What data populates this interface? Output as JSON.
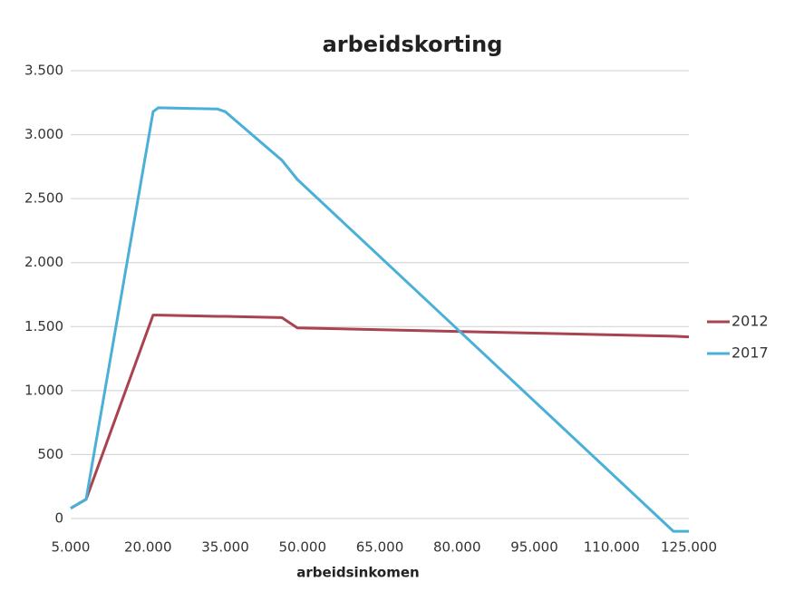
{
  "chart_data": {
    "type": "line",
    "title": "arbeidskorting",
    "x_label": "arbeidsinkomen",
    "x": [
      5000,
      8000,
      21000,
      22000,
      33500,
      35000,
      46000,
      49000,
      122000,
      125000
    ],
    "series": [
      {
        "name": "2012",
        "color": "#a8434f",
        "values": [
          80,
          150,
          1590,
          1590,
          1580,
          1580,
          1570,
          1490,
          1425,
          1420
        ]
      },
      {
        "name": "2017",
        "color": "#4ab0d8",
        "values": [
          80,
          150,
          3180,
          3210,
          3200,
          3180,
          2800,
          2650,
          -100,
          -100
        ]
      }
    ],
    "xlim": [
      5000,
      125000
    ],
    "xticks": [
      {
        "value": 5000,
        "label": "5.000"
      },
      {
        "value": 20000,
        "label": "20.000"
      },
      {
        "value": 35000,
        "label": "35.000"
      },
      {
        "value": 50000,
        "label": "50.000"
      },
      {
        "value": 65000,
        "label": "65.000"
      },
      {
        "value": 80000,
        "label": "80.000"
      },
      {
        "value": 95000,
        "label": "95.000"
      },
      {
        "value": 110000,
        "label": "110.000"
      },
      {
        "value": 125000,
        "label": "125.000"
      }
    ],
    "ylim": [
      0,
      3500
    ],
    "yticks": [
      0,
      500,
      {
        "value": 1000,
        "label": "1.000"
      },
      {
        "value": 1500,
        "label": "1.500"
      },
      {
        "value": 2000,
        "label": "2.000"
      },
      {
        "value": 2500,
        "label": "2.500"
      },
      {
        "value": 3000,
        "label": "3.000"
      },
      {
        "value": 3500,
        "label": "3.500"
      }
    ],
    "grid": true,
    "legend": "right"
  }
}
